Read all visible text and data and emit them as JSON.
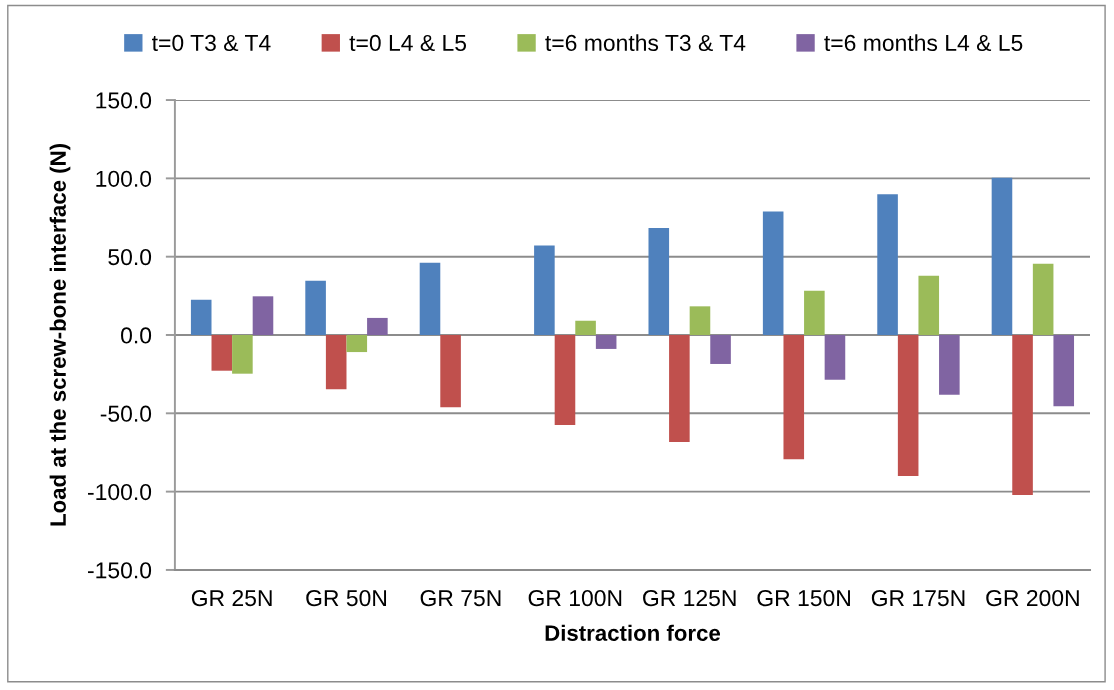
{
  "chart_data": {
    "type": "bar",
    "xlabel": "Distraction force",
    "ylabel": "Load at the screw-bone interface (N)",
    "categories": [
      "GR 25N",
      "GR 50N",
      "GR 75N",
      "GR 100N",
      "GR 125N",
      "GR 150N",
      "GR 175N",
      "GR 200N"
    ],
    "series": [
      {
        "name": "t=0 T3 & T4",
        "color": "#4f81bd",
        "values": [
          22.5,
          34.7,
          46.2,
          57.2,
          68.3,
          78.9,
          89.8,
          100.4
        ]
      },
      {
        "name": "t=0 L4 & L5",
        "color": "#c0504d",
        "values": [
          -22.8,
          -34.7,
          -46.2,
          -57.4,
          -68.3,
          -79.4,
          -90.0,
          -102.1
        ]
      },
      {
        "name": "t=6 months T3 & T4",
        "color": "#9bbb59",
        "values": [
          -24.7,
          -10.9,
          null,
          9.1,
          18.3,
          28.3,
          37.9,
          45.5
        ]
      },
      {
        "name": "t=6 months L4 & L5",
        "color": "#8064a2",
        "values": [
          24.7,
          10.9,
          null,
          -8.9,
          -18.5,
          -28.5,
          -38.1,
          -45.5
        ]
      }
    ],
    "ylim": [
      -150,
      150
    ],
    "yticks": [
      {
        "value": -150,
        "label": "-150.0"
      },
      {
        "value": -100,
        "label": "-100.0"
      },
      {
        "value": -50,
        "label": "-50.0"
      },
      {
        "value": 0,
        "label": "0.0"
      },
      {
        "value": 50,
        "label": "50.0"
      },
      {
        "value": 100,
        "label": "100.0"
      },
      {
        "value": 150,
        "label": "150.0"
      }
    ],
    "grid": "y",
    "legend": "top"
  }
}
